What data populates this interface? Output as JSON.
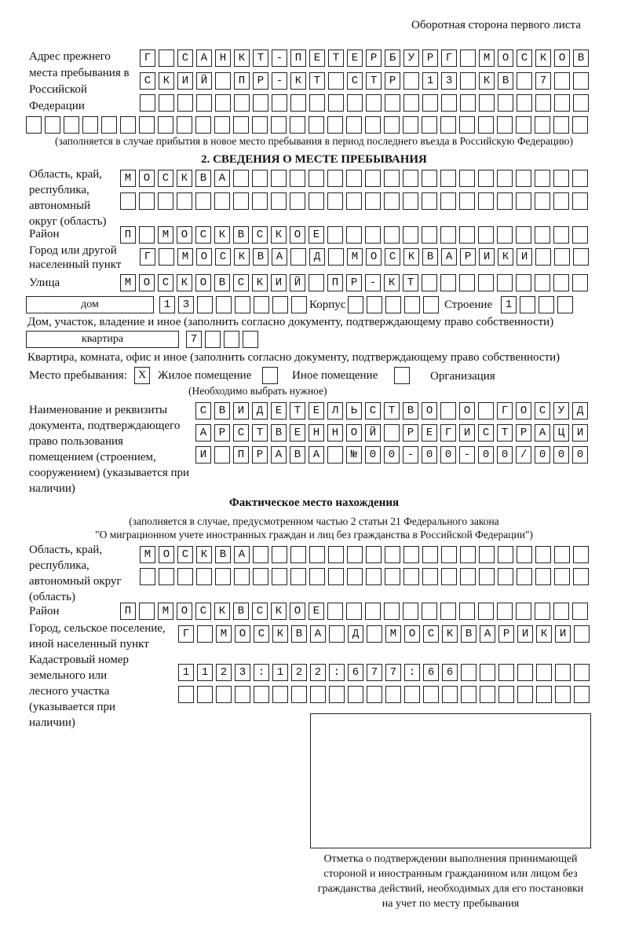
{
  "header": {
    "page_side": "Оборотная сторона первого листа"
  },
  "previous_address": {
    "label": "Адрес прежнего места пребывания в Российской Федерации",
    "rows": [
      "Г САНКТ-ПЕТЕРБУРГ МОСКОВ",
      "СКИЙ ПР-КТ СТР 13 КВ 7  ",
      "                        ",
      "                              "
    ],
    "note": "(заполняется в случае прибытия в новое место пребывания в период последнего въезда в Российскую Федерацию)"
  },
  "section2": {
    "title": "2. СВЕДЕНИЯ О МЕСТЕ ПРЕБЫВАНИЯ",
    "region_label": "Область, край, республика, автономный округ (область)",
    "region_rows": [
      "МОСКВА                   ",
      "                         "
    ],
    "district_label": "Район",
    "district_row": "П МОСКВСКОЕ              ",
    "city_label": "Город или другой населенный пункт",
    "city_row": "Г МОСКВА Д МОСКВАРИКИ   ",
    "street_label": "Улица",
    "street_row": "МОСКОВСКИЙ ПР-КТ         ",
    "house_type": "дом",
    "house_row": "13      ",
    "korpus_label": "Корпус",
    "korpus_row": "     ",
    "building_label": "Строение",
    "building_row": "1   ",
    "house_note": "Дом, участок, владение и иное (заполнить согласно документу, подтверждающему право собственности)",
    "apt_type": "квартира",
    "apt_row": "7   ",
    "apt_note": "Квартира, комната, офис и иное (заполнить согласно документу, подтверждающему право собственности)",
    "stay_label": "Место пребывания:",
    "stay_options": [
      {
        "label": "Жилое помещение",
        "mark": "X"
      },
      {
        "label": "Иное помещение",
        "mark": ""
      },
      {
        "label": "Организация",
        "mark": ""
      }
    ],
    "stay_note": "(Необходимо выбрать нужное)",
    "doc_label": "Наименование и реквизиты документа, подтверждающего право пользования помещением (строением, сооружением) (указывается при наличии)",
    "doc_rows": [
      "СВИДЕТЕЛЬСТВО О ГОСУД",
      "АРСТВЕННОЙ РЕГИСТРАЦИ",
      "И ПРАВА №00-00-00/000"
    ]
  },
  "actual": {
    "title": "Фактическое место нахождения",
    "note1": "(заполняется в случае, предусмотренном частью 2 статьи 21 Федерального закона",
    "note2": "\"О миграционном учете иностранных граждан и лиц без гражданства в Российской Федерации\")",
    "region_label": "Область, край, республика, автономный округ (область)",
    "region_rows": [
      "МОСКВА                  ",
      "                        "
    ],
    "district_label": "Район",
    "district_row": "П МОСКВСКОЕ              ",
    "city_label": "Город, сельское поселение, иной населенный пункт",
    "city_row": "Г МОСКВА Д МОСКВАРИКИ ",
    "cadastral_label": "Кадастровый номер земельного или лесного участка (указывается при наличии)",
    "cadastral_rows": [
      "1123:122:677:66       ",
      "                      "
    ]
  },
  "confirmation": {
    "caption": "Отметка о подтверждении выполнения принимающей стороной и иностранным гражданином или лицом без гражданства действий, необходимых для его постановки на учет по месту пребывания"
  }
}
